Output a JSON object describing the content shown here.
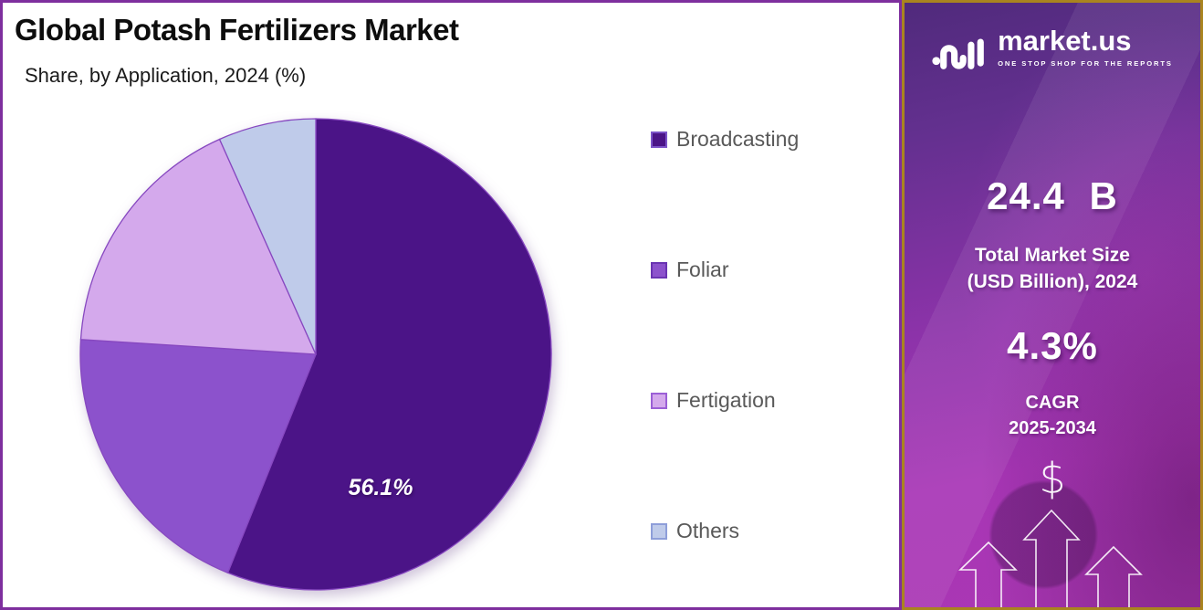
{
  "header": {
    "title": "Global Potash Fertilizers Market",
    "subtitle": "Share, by Application, 2024 (%)"
  },
  "chart_data": {
    "type": "pie",
    "title": "Global Potash Fertilizers Market Share, by Application, 2024 (%)",
    "unit": "%",
    "categories": [
      "Broadcasting",
      "Foliar",
      "Fertigation",
      "Others"
    ],
    "values": [
      56.1,
      19.9,
      17.3,
      6.7
    ],
    "displayed_labels": [
      "56.1%",
      "",
      "",
      ""
    ],
    "start_angle_deg": 0,
    "direction": "clockwise",
    "colors": [
      "#4B1487",
      "#8C52CC",
      "#D4A9EC",
      "#BFCBEA"
    ],
    "swatch_border_colors": [
      "#7B52C8",
      "#6A34B2",
      "#9B5FD6",
      "#8E9ED9"
    ],
    "slice_stroke": "#8748C0",
    "legend_position": "right",
    "slice_label": {
      "text": "56.1%",
      "color": "#FFFFFF"
    }
  },
  "promo_panel": {
    "brand": {
      "name": "market.us",
      "tagline": "ONE STOP SHOP FOR THE REPORTS"
    },
    "market_size": {
      "value": "24.4 B",
      "label_line1": "Total Market Size",
      "label_line2": "(USD Billion), 2024"
    },
    "cagr": {
      "value": "4.3%",
      "label_line1": "CAGR",
      "label_line2": "2025-2034"
    },
    "dollar_symbol": "$"
  },
  "colors": {
    "chart_frame_border": "#7E2F9E",
    "panel_frame_border": "#A9841F",
    "page_background": "#FFFFFF",
    "legend_text": "#595959",
    "title_text": "#0D0D0D"
  }
}
